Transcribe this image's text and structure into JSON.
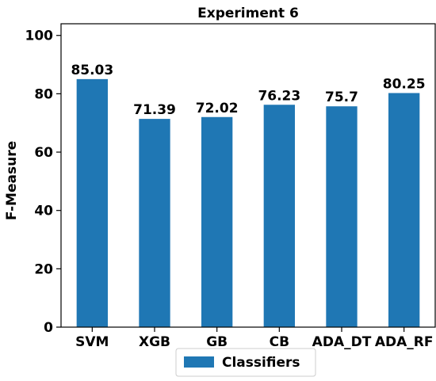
{
  "chart_data": {
    "type": "bar",
    "title": "Experiment 6",
    "xlabel": "",
    "ylabel": "F-Measure",
    "categories": [
      "SVM",
      "XGB",
      "GB",
      "CB",
      "ADA_DT",
      "ADA_RF"
    ],
    "series": [
      {
        "name": "Classifiers",
        "values": [
          85.03,
          71.39,
          72.02,
          76.23,
          75.7,
          80.25
        ]
      }
    ],
    "data_labels": [
      "85.03",
      "71.39",
      "72.02",
      "76.23",
      "75.7",
      "80.25"
    ],
    "ylim": [
      0,
      104
    ],
    "yticks": [
      0,
      20,
      40,
      60,
      80,
      100
    ],
    "grid": false,
    "legend_position": "bottom-center",
    "colors": {
      "bar": "#1f77b4",
      "axis": "#000000",
      "background": "#ffffff"
    }
  }
}
